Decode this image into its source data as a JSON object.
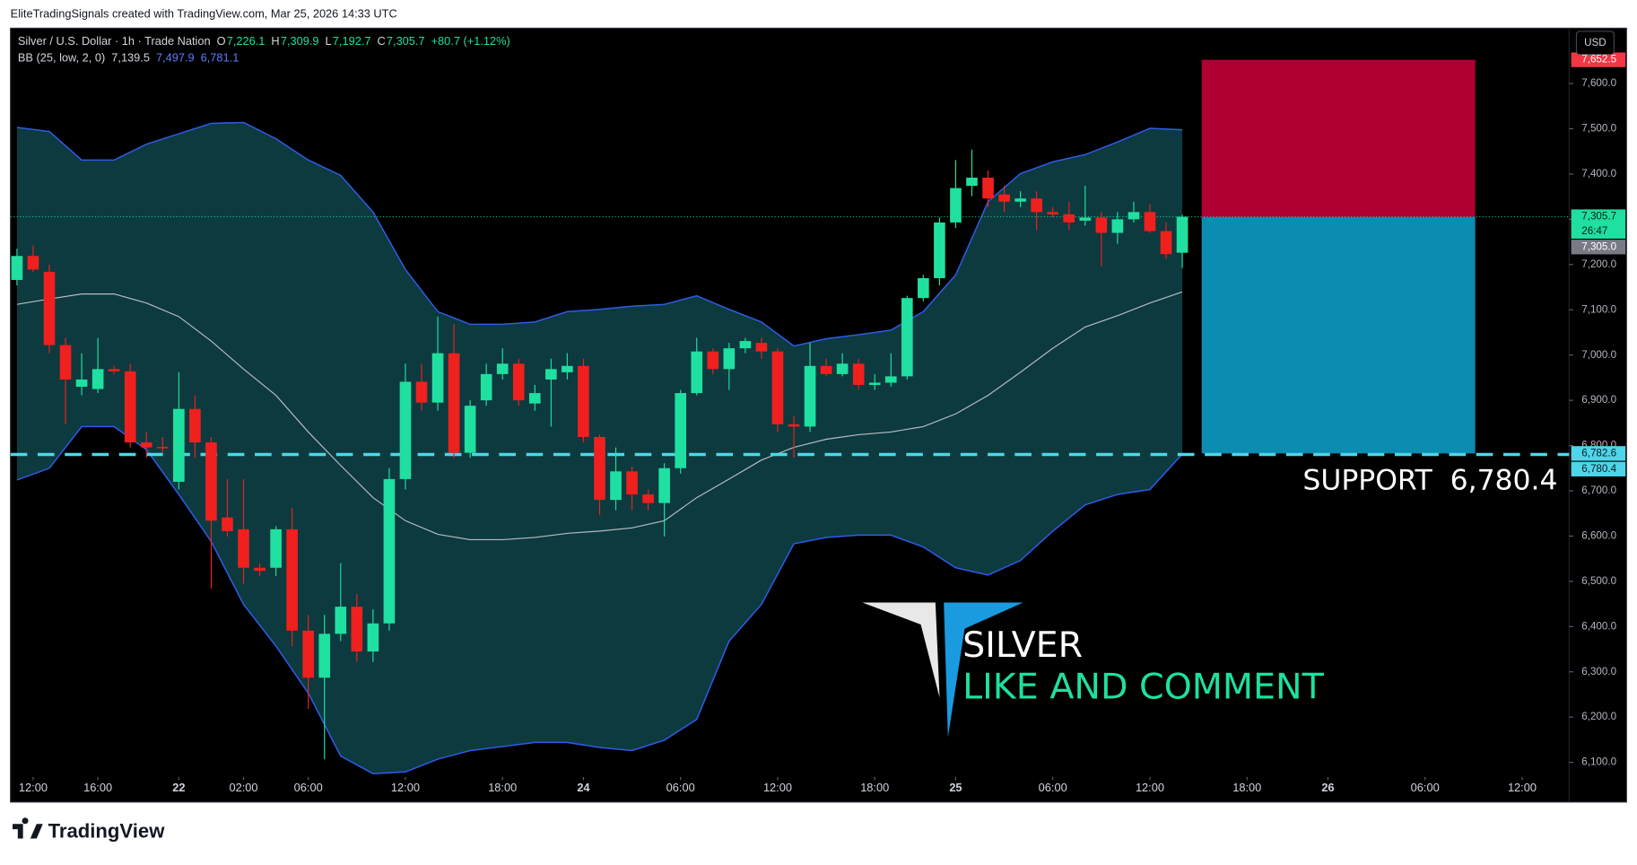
{
  "chart_data": {
    "type": "candlestick",
    "attribution": "EliteTradingSignals created with TradingView.com, Mar 25, 2026 14:33 UTC",
    "title": "Silver / U.S. Dollar · 1h · Trade Nation",
    "ohlc_legend": [
      {
        "key": "O",
        "text": "7,226.1"
      },
      {
        "key": "H",
        "text": "7,309.9"
      },
      {
        "key": "L",
        "text": "7,192.7"
      },
      {
        "key": "C",
        "text": "7,305.7"
      }
    ],
    "change": "+80.7 (+1.12%)",
    "currency": "USD",
    "brand": "TradingView",
    "up_color": "#1fe0a0",
    "down_color": "#f0201e",
    "open": [
      7166,
      7219,
      7184,
      7022,
      6930,
      6925,
      6969,
      6964,
      6807,
      6797,
      6720,
      6881,
      6807,
      6641,
      6615,
      6530,
      6530,
      6615,
      6391,
      6287,
      6384,
      6444,
      6345,
      6407,
      6726,
      6941,
      6895,
      7004,
      6784,
      6900,
      6958,
      6981,
      6893,
      6946,
      6962,
      6976,
      6819,
      6680,
      6743,
      6692,
      6673,
      6750,
      6916,
      7008,
      6969,
      7015,
      7027,
      7008,
      6847,
      6842,
      6976,
      6958,
      6981,
      6934,
      6939,
      6953,
      7126,
      7170,
      7293,
      7374,
      7392,
      7355,
      7339,
      7346,
      7316,
      7311,
      7297,
      7304,
      7270,
      7300,
      7316,
      7274,
      7226.1
    ],
    "high": [
      7235,
      7242,
      7200,
      7038,
      7004,
      7038,
      6976,
      6981,
      6830,
      6819,
      6962,
      6911,
      6819,
      6726,
      6726,
      6540,
      6622,
      6662,
      6426,
      6426,
      6540,
      6472,
      6438,
      6750,
      6981,
      6981,
      7085,
      7068,
      6900,
      6981,
      7015,
      6992,
      6934,
      6992,
      7004,
      6992,
      6824,
      6796,
      6754,
      6703,
      6761,
      6923,
      7038,
      7015,
      7027,
      7038,
      7038,
      7015,
      6865,
      7027,
      6992,
      7004,
      6992,
      6958,
      7004,
      7131,
      7177,
      7304,
      7431,
      7454,
      7408,
      7374,
      7362,
      7362,
      7327,
      7339,
      7374,
      7316,
      7316,
      7339,
      7334,
      7293,
      7309.9
    ],
    "low": [
      7154,
      7184,
      7004,
      6847,
      6911,
      6916,
      6958,
      6796,
      6773,
      6784,
      6703,
      6773,
      6484,
      6599,
      6495,
      6512,
      6512,
      6357,
      6218,
      6107,
      6368,
      6322,
      6322,
      6391,
      6703,
      6877,
      6877,
      6773,
      6773,
      6888,
      6946,
      6888,
      6877,
      6842,
      6946,
      6807,
      6646,
      6657,
      6657,
      6657,
      6599,
      6738,
      6911,
      6958,
      6923,
      7004,
      6992,
      6830,
      6773,
      6830,
      6953,
      6953,
      6923,
      6923,
      6930,
      6946,
      7119,
      7154,
      7281,
      7351,
      7327,
      7316,
      7327,
      7276,
      7304,
      7276,
      7286,
      7196,
      7246,
      7293,
      7270,
      7212,
      7192.7
    ],
    "close": [
      7219,
      7189,
      7022,
      6946,
      6946,
      6969,
      6964,
      6807,
      6796,
      6794,
      6881,
      6807,
      6634,
      6611,
      6530,
      6523,
      6615,
      6391,
      6287,
      6384,
      6444,
      6345,
      6407,
      6726,
      6941,
      6895,
      7004,
      6784,
      6888,
      6958,
      6981,
      6900,
      6916,
      6969,
      6976,
      6819,
      6680,
      6743,
      6692,
      6673,
      6750,
      6916,
      7008,
      6969,
      7015,
      7031,
      7008,
      6847,
      6842,
      6976,
      6958,
      6981,
      6934,
      6939,
      6953,
      7126,
      7170,
      7293,
      7369,
      7392,
      7346,
      7339,
      7346,
      7316,
      7311,
      7293,
      7304,
      7270,
      7300,
      7316,
      7274,
      7223,
      7305.7
    ],
    "indicator": {
      "name": "BB (25, low, 2, 0)",
      "fill": "#0c3a3e",
      "x": [
        0,
        2,
        4,
        6,
        8,
        10,
        12,
        14,
        16,
        18,
        20,
        22,
        24,
        26,
        28,
        30,
        32,
        34,
        36,
        38,
        40,
        42,
        44,
        46,
        48,
        50,
        52,
        54,
        56,
        58,
        60,
        62,
        64,
        66,
        68,
        70,
        72
      ],
      "series": [
        {
          "legend_label": "7,139.5",
          "color": "#b8bcc4",
          "values": [
            7112,
            7124,
            7135,
            7135,
            7115,
            7085,
            7031,
            6969,
            6911,
            6830,
            6756,
            6685,
            6634,
            6604,
            6592,
            6592,
            6597,
            6606,
            6611,
            6618,
            6634,
            6685,
            6726,
            6768,
            6796,
            6814,
            6824,
            6830,
            6842,
            6870,
            6911,
            6962,
            7015,
            7062,
            7087,
            7115,
            7139.5
          ]
        },
        {
          "legend_label": "7,497.9",
          "color": "#2f5be8",
          "values": [
            7503,
            7494,
            7431,
            7431,
            7466,
            7489,
            7512,
            7514,
            7478,
            7431,
            7397,
            7316,
            7189,
            7096,
            7068,
            7068,
            7073,
            7096,
            7101,
            7108,
            7112,
            7131,
            7101,
            7073,
            7020,
            7036,
            7045,
            7055,
            7096,
            7177,
            7339,
            7401,
            7427,
            7443,
            7471,
            7501,
            7497.9
          ]
        },
        {
          "legend_label": "6,781.1",
          "color": "#2f5be8",
          "values": [
            6724,
            6750,
            6842,
            6842,
            6791,
            6692,
            6588,
            6449,
            6357,
            6253,
            6114,
            6075,
            6079,
            6107,
            6126,
            6135,
            6144,
            6144,
            6133,
            6126,
            6149,
            6195,
            6368,
            6449,
            6583,
            6597,
            6602,
            6602,
            6576,
            6530,
            6514,
            6546,
            6611,
            6669,
            6692,
            6703,
            6781.1
          ]
        }
      ]
    },
    "current_price": {
      "value": 7305.7,
      "color": "#1fe0a0"
    },
    "position": {
      "entry": 7305.0,
      "stop": 7652.5,
      "target": 6782.6,
      "start": 73.2,
      "end": 90.1,
      "stop_color": "#b00032",
      "target_color": "#0a8db0"
    },
    "support": {
      "value": 6780.4,
      "label": "SUPPORT  6,780.4",
      "color": "#4dd6ea"
    },
    "price_labels": [
      {
        "value": 7652.5,
        "label": "7,652.5",
        "bg": "#f23645",
        "text_color": "#ffffff"
      },
      {
        "value": 7305.7,
        "label": "7,305.7",
        "countdown": "26:47",
        "bg": "#1fe0a0",
        "text_color": "#0b1a14"
      },
      {
        "value": 7305.0,
        "label": "7,305.0",
        "bg": "#787b86",
        "text_color": "#ffffff"
      },
      {
        "value": 6782.6,
        "label": "6,782.6",
        "bg": "#4dd6ea",
        "text_color": "#0b1a20"
      },
      {
        "value": 6780.4,
        "label": "6,780.4",
        "bg": "#4dd6ea",
        "text_color": "#0b1a20"
      }
    ],
    "watermark": {
      "title": "SILVER",
      "subtitle": "LIKE AND COMMENT"
    },
    "xlim": [
      -0.4,
      95.9
    ],
    "ylim": [
      6070,
      7720
    ],
    "xticks": [
      {
        "value": 1,
        "label": "12:00"
      },
      {
        "value": 5,
        "label": "16:00"
      },
      {
        "value": 10,
        "label": "22"
      },
      {
        "value": 14,
        "label": "02:00"
      },
      {
        "value": 18,
        "label": "06:00"
      },
      {
        "value": 24,
        "label": "12:00"
      },
      {
        "value": 30,
        "label": "18:00"
      },
      {
        "value": 35,
        "label": "24"
      },
      {
        "value": 41,
        "label": "06:00"
      },
      {
        "value": 47,
        "label": "12:00"
      },
      {
        "value": 53,
        "label": "18:00"
      },
      {
        "value": 58,
        "label": "25"
      },
      {
        "value": 64,
        "label": "06:00"
      },
      {
        "value": 70,
        "label": "12:00"
      },
      {
        "value": 76,
        "label": "18:00"
      },
      {
        "value": 81,
        "label": "26"
      },
      {
        "value": 87,
        "label": "06:00"
      },
      {
        "value": 93,
        "label": "12:00"
      }
    ],
    "yticks": [
      {
        "value": 6100,
        "label": "6,100.0"
      },
      {
        "value": 6200,
        "label": "6,200.0"
      },
      {
        "value": 6300,
        "label": "6,300.0"
      },
      {
        "value": 6400,
        "label": "6,400.0"
      },
      {
        "value": 6500,
        "label": "6,500.0"
      },
      {
        "value": 6600,
        "label": "6,600.0"
      },
      {
        "value": 6700,
        "label": "6,700.0"
      },
      {
        "value": 6800,
        "label": "6,800.0"
      },
      {
        "value": 6900,
        "label": "6,900.0"
      },
      {
        "value": 7000,
        "label": "7,000.0"
      },
      {
        "value": 7100,
        "label": "7,100.0"
      },
      {
        "value": 7200,
        "label": "7,200.0"
      },
      {
        "value": 7300,
        "label": "7,300.0"
      },
      {
        "value": 7400,
        "label": "7,400.0"
      },
      {
        "value": 7500,
        "label": "7,500.0"
      },
      {
        "value": 7600,
        "label": "7,600.0"
      }
    ]
  }
}
